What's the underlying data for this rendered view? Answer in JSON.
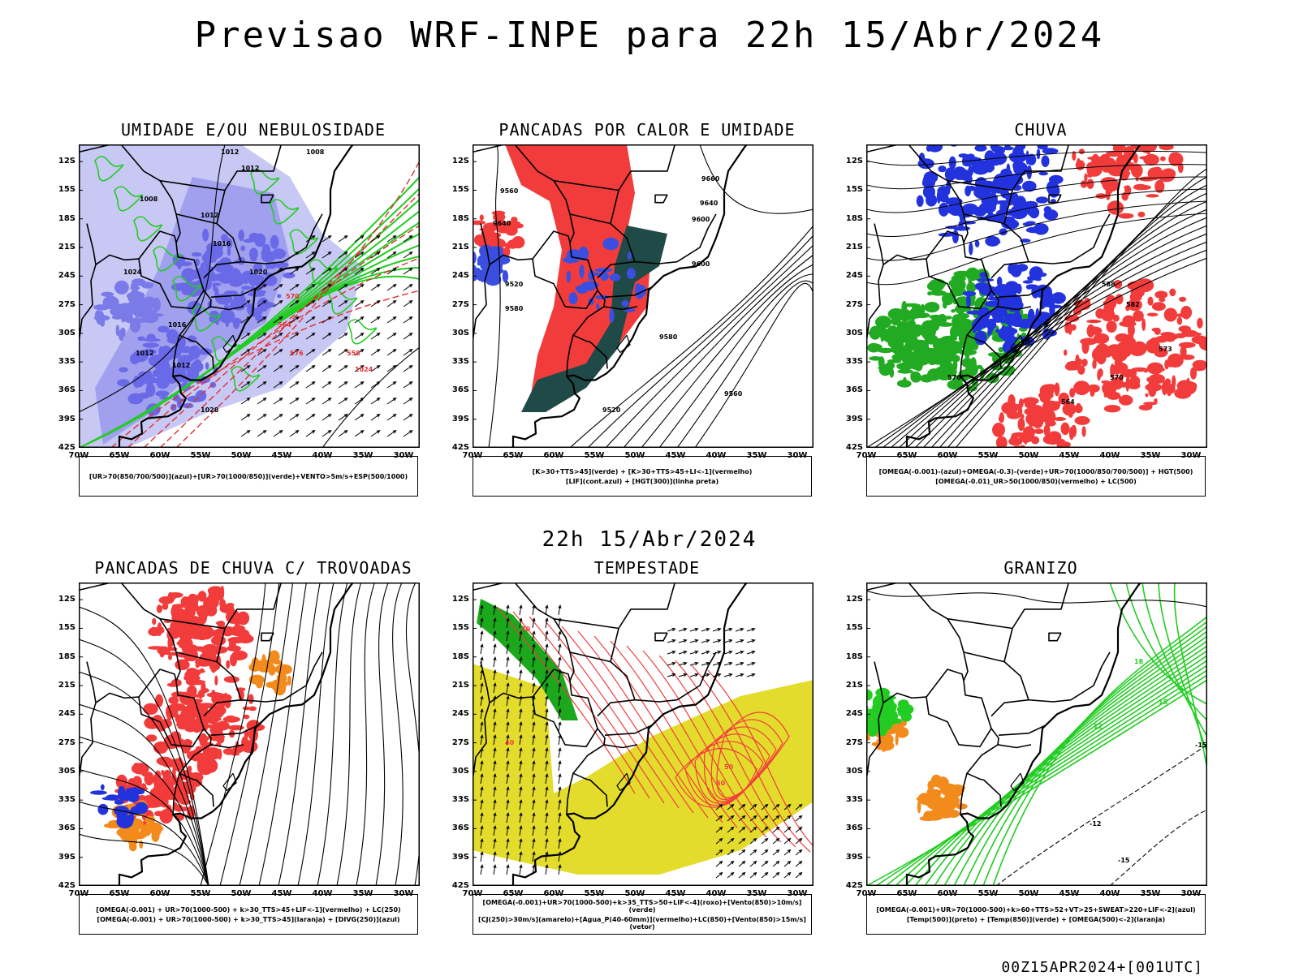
{
  "title": "Previsao WRF-INPE  para 22h 15/Abr/2024",
  "subtitle": "22h 15/Abr/2024",
  "footer": "00Z15APR2024+[001UTC]",
  "axes": {
    "lat_labels": [
      "12S",
      "15S",
      "18S",
      "21S",
      "24S",
      "27S",
      "30S",
      "33S",
      "36S",
      "39S",
      "42S"
    ],
    "lon_labels": [
      "70W",
      "65W",
      "60W",
      "55W",
      "50W",
      "45W",
      "40W",
      "35W",
      "30W"
    ]
  },
  "panels": [
    {
      "title": "UMIDADE E/OU NEBULOSIDADE",
      "legend": [
        "[UR>70(850/700/500)](azul)+[UR>70(1000/850)](verde)+VENTO>5m/s+ESP(500/1000)"
      ],
      "contour_labels": [
        "1012",
        "1012",
        "1008",
        "1012",
        "1016",
        "1020",
        "1024",
        "1016",
        "1012",
        "1012",
        "1008",
        "576",
        "570",
        "564",
        "558",
        "1024",
        "1028"
      ]
    },
    {
      "title": "PANCADAS POR CALOR E UMIDADE",
      "legend": [
        "[K>30+TTS>45](verde)  +  [K>30+TTS>45+LI<-1](vermelho)",
        "[LIF](cont.azul)  +  [HGT(300)](linha preta)"
      ],
      "contour_labels": [
        "9660",
        "9640",
        "9600",
        "9560",
        "9520",
        "9580",
        "9600",
        "9580",
        "9560",
        "9520",
        "9640"
      ]
    },
    {
      "title": "CHUVA",
      "legend": [
        "[OMEGA(-0.001)-(azul)+OMEGA(-0.3)-(verde)+UR>70(1000/850/700/500)]  +  HGT(500)",
        "[OMEGA(-0.01)_UR>50(1000/850)(vermelho)  +  LC(500)"
      ],
      "contour_labels": [
        "582",
        "576",
        "573",
        "570",
        "564",
        "588"
      ]
    },
    {
      "title": "PANCADAS DE CHUVA C/ TROVOADAS",
      "legend": [
        "[OMEGA(-0.001)  +  UR>70(1000-500)  +  k>30_TTS>45+LIF<-1](vermelho)  +  LC(250)",
        "[OMEGA(-0.001)  +  UR>70(1000-500)  +  k>30_TTS>45](laranja)  +  [DIVG(250)](azul)"
      ],
      "contour_labels": []
    },
    {
      "title": "TEMPESTADE",
      "legend": [
        "[OMEGA(-0.001)+UR>70(1000-500)+k>35_TTS>50+LIF<-4](roxo)+[Vento(850)>10m/s](verde)",
        "[CJ(250)>30m/s](amarelo)+[Agua_P(40-60mm)](vermelho)+LC(850)+[Vento(850)>15m/s](vetor)"
      ],
      "contour_labels": [
        "40",
        "40",
        "50",
        "60"
      ]
    },
    {
      "title": "GRANIZO",
      "legend": [
        "[OMEGA(-0.001)+UR>70(1000-500)+k>60+TTS>52+VT>25+SWEAT>220+LIF<-2](azul)",
        "[Temp(500)](preto)  +  [Temp(850)](verde)  +  [OMEGA(500)<-2](laranja)"
      ],
      "contour_labels": [
        "-15",
        "-12",
        "-15",
        "15",
        "18",
        "12"
      ]
    }
  ]
}
